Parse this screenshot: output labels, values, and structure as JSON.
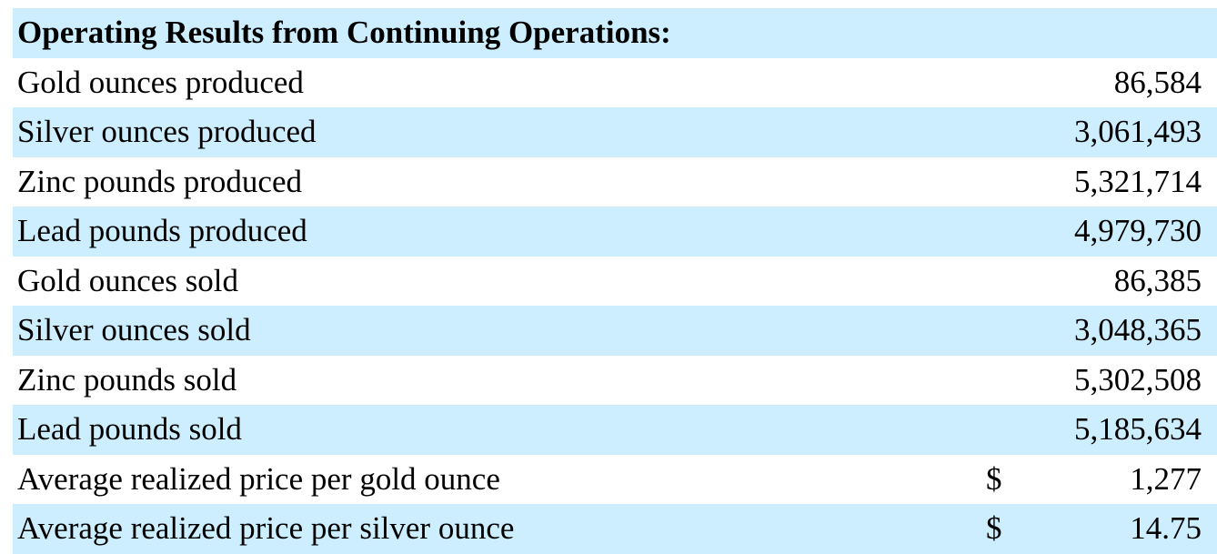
{
  "table": {
    "header": "Operating Results from Continuing Operations:",
    "rows": [
      {
        "label": "Gold ounces produced",
        "currency": "",
        "value": "86,584"
      },
      {
        "label": "Silver ounces produced",
        "currency": "",
        "value": "3,061,493"
      },
      {
        "label": "Zinc pounds produced",
        "currency": "",
        "value": "5,321,714"
      },
      {
        "label": "Lead pounds produced",
        "currency": "",
        "value": "4,979,730"
      },
      {
        "label": "Gold ounces sold",
        "currency": "",
        "value": "86,385"
      },
      {
        "label": "Silver ounces sold",
        "currency": "",
        "value": "3,048,365"
      },
      {
        "label": "Zinc pounds sold",
        "currency": "",
        "value": "5,302,508"
      },
      {
        "label": "Lead pounds sold",
        "currency": "",
        "value": "5,185,634"
      },
      {
        "label": "Average realized price per gold ounce",
        "currency": "$",
        "value": "1,277"
      },
      {
        "label": "Average realized price per silver ounce",
        "currency": "$",
        "value": "14.75"
      }
    ]
  },
  "colors": {
    "shaded_row": "#cceeff",
    "plain_row": "#ffffff",
    "text": "#000000"
  }
}
